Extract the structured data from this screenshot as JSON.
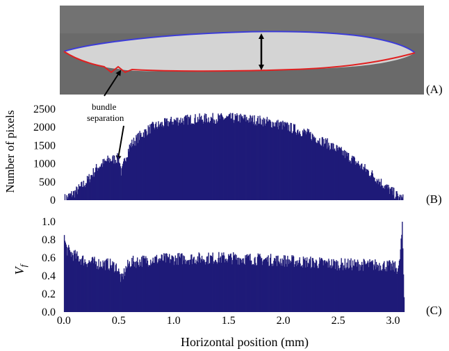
{
  "panel_labels": {
    "a": "(A)",
    "b": "(B)",
    "c": "(C)"
  },
  "annotation": {
    "line1": "bundle",
    "line2": "separation"
  },
  "colors": {
    "bar": "#1f1b78",
    "top_boundary": "#3c3cd8",
    "bottom_boundary": "#e02020",
    "micrograph_bg": "#6a6a6a",
    "fiber_region": "#d4d4d4"
  },
  "chart_data": [
    {
      "type": "bar",
      "panel": "B",
      "title": "",
      "xlabel": "",
      "ylabel": "Number of pixels",
      "xlim": [
        -0.05,
        3.25
      ],
      "ylim": [
        0,
        2500
      ],
      "y_ticks": [
        "0",
        "500",
        "1000",
        "1500",
        "2000",
        "2500"
      ],
      "profile_x": [
        0.0,
        0.05,
        0.1,
        0.2,
        0.3,
        0.4,
        0.5,
        0.52,
        0.56,
        0.6,
        0.7,
        0.8,
        1.0,
        1.2,
        1.4,
        1.6,
        1.8,
        2.0,
        2.2,
        2.4,
        2.6,
        2.8,
        2.95,
        3.05,
        3.1
      ],
      "profile_y": [
        30,
        120,
        220,
        500,
        900,
        1100,
        1150,
        720,
        1200,
        1500,
        1800,
        2000,
        2180,
        2230,
        2250,
        2250,
        2180,
        2050,
        1850,
        1550,
        1180,
        720,
        320,
        80,
        0
      ]
    },
    {
      "type": "bar",
      "panel": "C",
      "title": "",
      "xlabel": "Horizontal position (mm)",
      "ylabel": "V_f",
      "xlim": [
        -0.05,
        3.25
      ],
      "ylim": [
        0.0,
        1.0
      ],
      "x_ticks": [
        "0.0",
        "0.5",
        "1.0",
        "1.5",
        "2.0",
        "2.5",
        "3.0"
      ],
      "y_ticks": [
        "0.0",
        "0.2",
        "0.4",
        "0.6",
        "0.8",
        "1.0"
      ],
      "profile_x": [
        0.0,
        0.02,
        0.05,
        0.1,
        0.2,
        0.3,
        0.4,
        0.48,
        0.52,
        0.56,
        0.6,
        0.8,
        1.0,
        1.5,
        2.0,
        2.5,
        2.9,
        3.0,
        3.05,
        3.08,
        3.1
      ],
      "profile_y": [
        0.82,
        0.7,
        0.66,
        0.62,
        0.56,
        0.54,
        0.53,
        0.5,
        0.35,
        0.48,
        0.55,
        0.58,
        0.59,
        0.6,
        0.57,
        0.53,
        0.52,
        0.5,
        0.48,
        0.94,
        0.0
      ]
    }
  ]
}
